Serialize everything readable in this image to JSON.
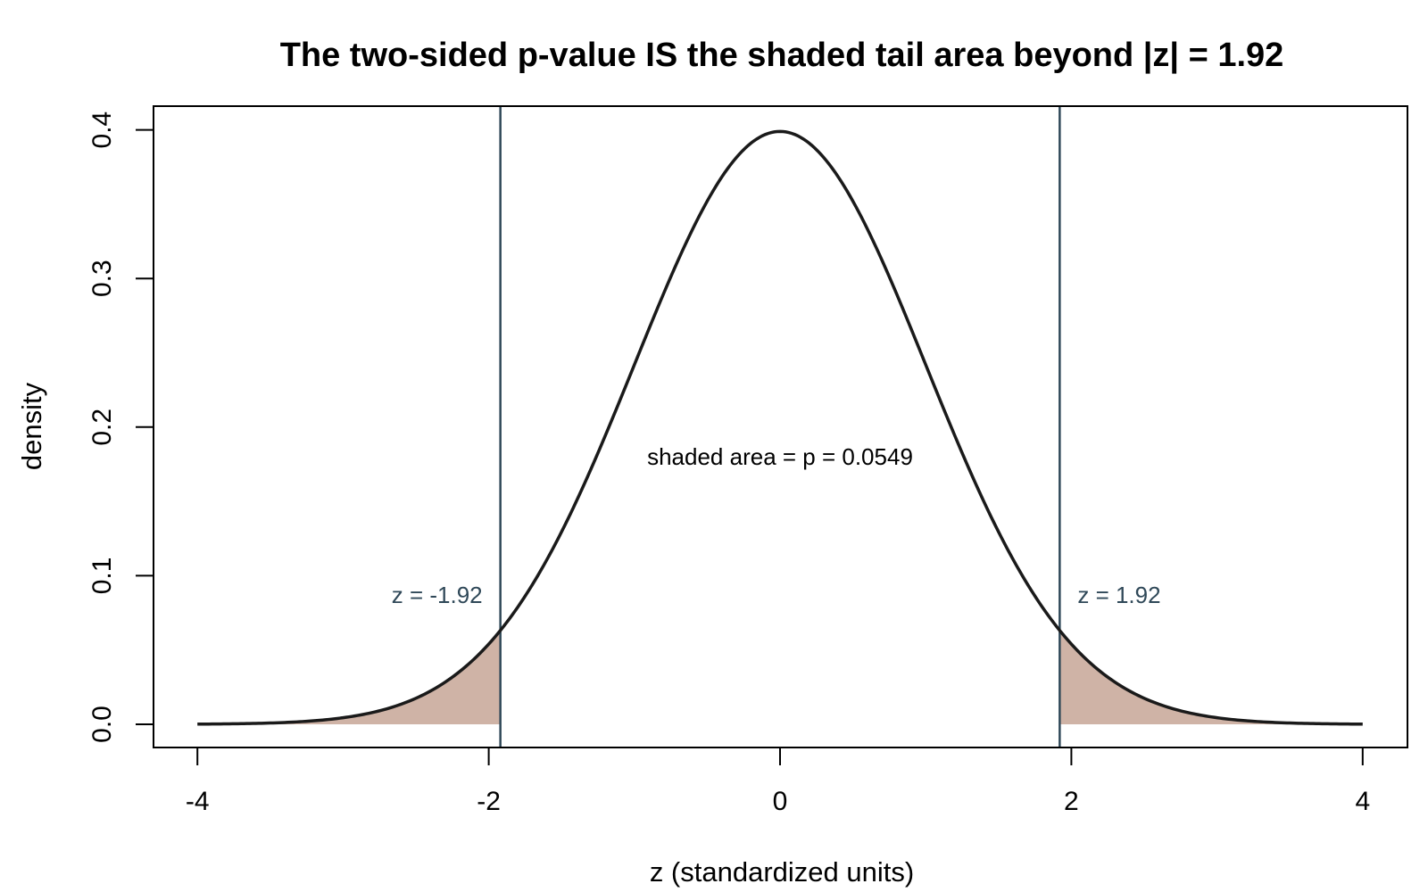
{
  "chart_data": {
    "type": "area",
    "title": "The two-sided p-value IS the shaded tail area beyond |z| = 1.92",
    "xlabel": "z (standardized units)",
    "ylabel": "density",
    "xlim": [
      -4,
      4
    ],
    "ylim": [
      0,
      0.4
    ],
    "x_ticks": [
      -4,
      -2,
      0,
      2,
      4
    ],
    "x_tick_labels": [
      "-4",
      "-2",
      "0",
      "2",
      "4"
    ],
    "y_ticks": [
      0.0,
      0.1,
      0.2,
      0.3,
      0.4
    ],
    "y_tick_labels": [
      "0.0",
      "0.1",
      "0.2",
      "0.3",
      "0.4"
    ],
    "grid": false,
    "legend": "none",
    "series": [
      {
        "distribution": "standard normal density",
        "x_range": [
          -4,
          4
        ],
        "color": "#1a1a1a"
      }
    ],
    "critical_values": [
      -1.92,
      1.92
    ],
    "critical_labels": [
      "z = -1.92",
      "z = 1.92"
    ],
    "critical_line_color": "#2f4858",
    "shaded_regions": [
      {
        "from": -4,
        "to": -1.92
      },
      {
        "from": 1.92,
        "to": 4
      }
    ],
    "shade_color": "#cfb3a6",
    "annotation": "shaded area = p = 0.0549",
    "annotation_position": [
      0,
      0.18
    ],
    "p_value": 0.0549
  }
}
